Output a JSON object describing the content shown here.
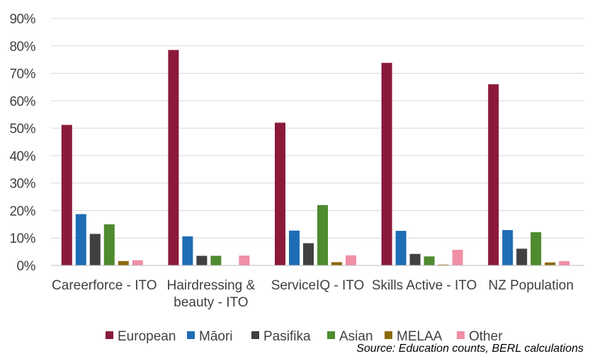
{
  "chart_data": {
    "type": "bar",
    "categories": [
      [
        "Careerforce - ITO"
      ],
      [
        "Hairdressing &",
        "beauty - ITO"
      ],
      [
        "ServiceIQ  - ITO"
      ],
      [
        "Skills Active - ITO"
      ],
      [
        "NZ Population"
      ]
    ],
    "series": [
      {
        "name": "European",
        "color": "#8B1A3A",
        "values": [
          51.2,
          78.5,
          52.0,
          73.8,
          66.0
        ]
      },
      {
        "name": "Māori",
        "color": "#1E6DB5",
        "values": [
          18.7,
          10.6,
          12.7,
          12.6,
          12.9
        ]
      },
      {
        "name": "Pasifika",
        "color": "#404040",
        "values": [
          11.5,
          3.5,
          8.1,
          4.2,
          6.1
        ]
      },
      {
        "name": "Asian",
        "color": "#4E8A2E",
        "values": [
          15.0,
          3.5,
          22.0,
          3.3,
          12.1
        ]
      },
      {
        "name": "MELAA",
        "color": "#8C6A0A",
        "values": [
          1.6,
          0.0,
          1.2,
          0.3,
          1.1
        ]
      },
      {
        "name": "Other",
        "color": "#F08EA5",
        "values": [
          1.9,
          3.6,
          3.7,
          5.7,
          1.6
        ]
      }
    ],
    "ylim": [
      0,
      90
    ],
    "yticks": [
      "0%",
      "10%",
      "20%",
      "30%",
      "40%",
      "50%",
      "60%",
      "70%",
      "80%",
      "90%"
    ],
    "ytick_values": [
      0,
      10,
      20,
      30,
      40,
      50,
      60,
      70,
      80,
      90
    ],
    "grid": true,
    "legend_position": "bottom",
    "xlabel": "",
    "ylabel": ""
  },
  "source_note": "Source: Education counts, BERL calculations"
}
